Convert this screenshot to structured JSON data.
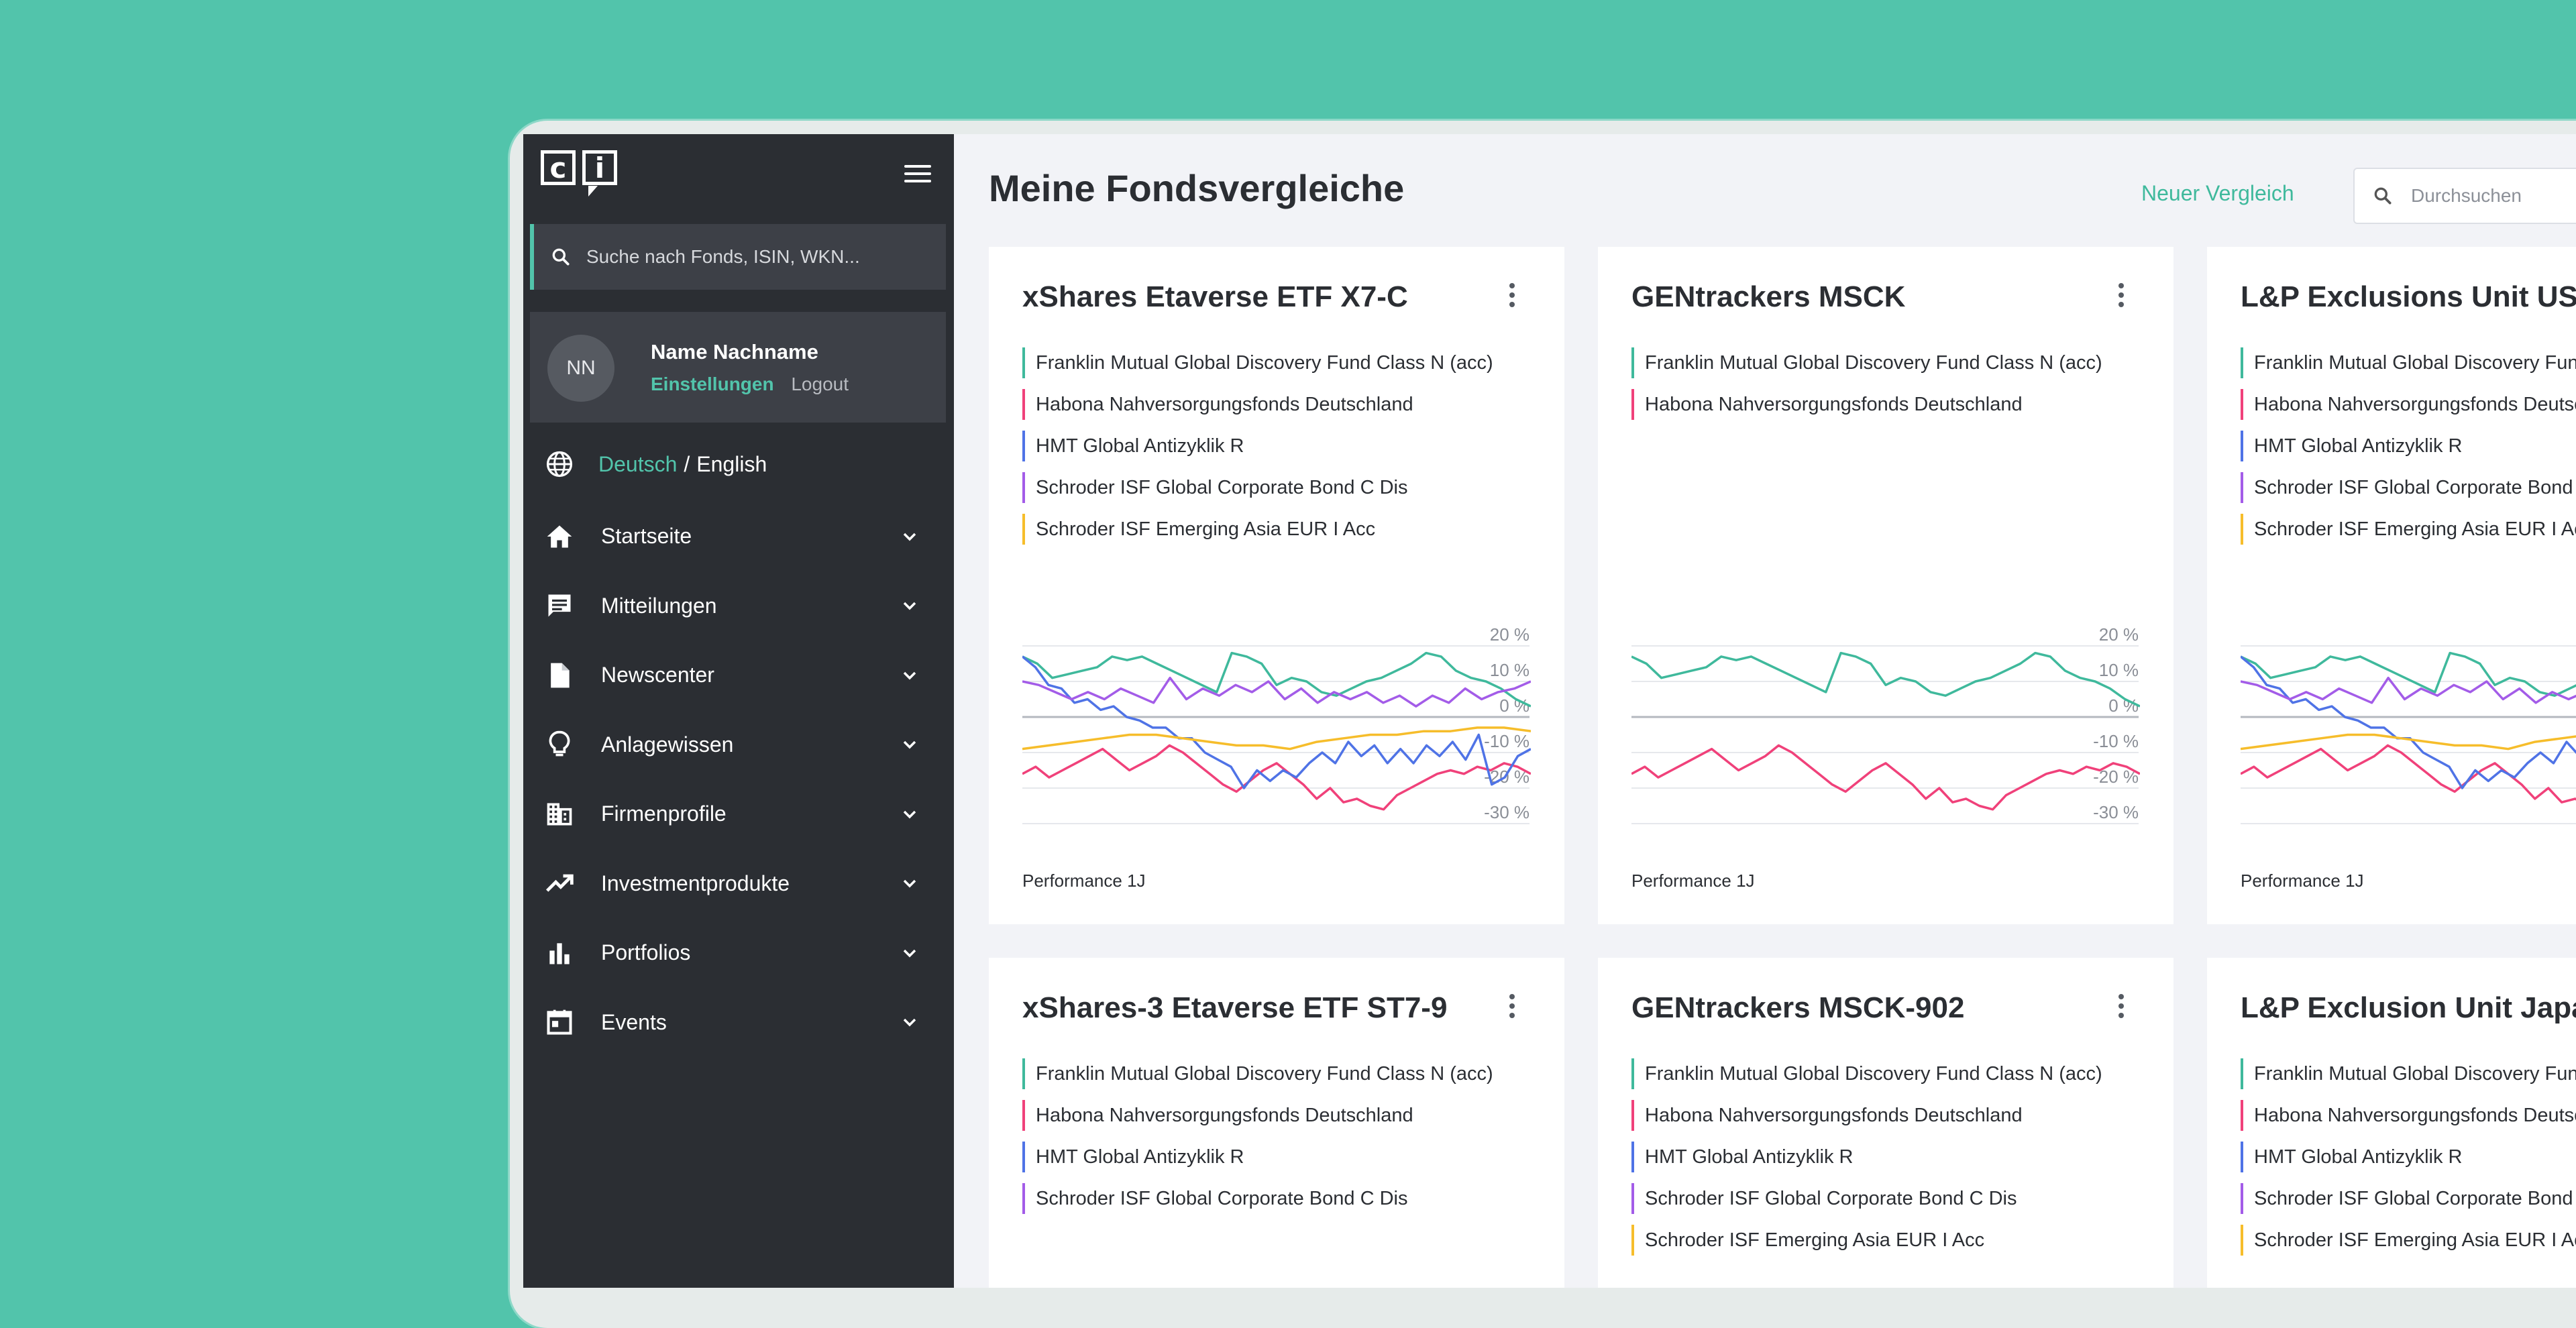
{
  "sidebar": {
    "logo_left": "c",
    "logo_right": "i",
    "search_placeholder": "Suche nach Fonds, ISIN, WKN...",
    "user": {
      "initials": "NN",
      "name": "Name Nachname",
      "settings": "Einstellungen",
      "logout": "Logout"
    },
    "lang": {
      "de": "Deutsch",
      "sep": "/",
      "en": "English"
    },
    "nav": [
      {
        "label": "Startseite",
        "icon": "home-icon"
      },
      {
        "label": "Mitteilungen",
        "icon": "chat-icon"
      },
      {
        "label": "Newscenter",
        "icon": "document-icon"
      },
      {
        "label": "Anlagewissen",
        "icon": "lightbulb-icon"
      },
      {
        "label": "Firmenprofile",
        "icon": "building-icon"
      },
      {
        "label": "Investmentprodukte",
        "icon": "trending-up-icon"
      },
      {
        "label": "Portfolios",
        "icon": "bar-chart-icon"
      },
      {
        "label": "Events",
        "icon": "calendar-icon"
      }
    ]
  },
  "header": {
    "title": "Meine Fondsvergleiche",
    "new_comparison": "Neuer Vergleich",
    "search_placeholder": "Durchsuchen"
  },
  "colors": {
    "accent": "#52c4ab",
    "teal": "#3fb99c",
    "pink": "#f0417a",
    "blue": "#4f73e6",
    "purple": "#a35ce8",
    "yellow": "#f6bd2b"
  },
  "funds": {
    "franklin": "Franklin Mutual Global Discovery Fund Class N (acc)",
    "habona": "Habona Nahversorgungsfonds Deutschland",
    "hmt": "HMT Global Antizyklik R",
    "schroder_bond": "Schroder ISF Global Corporate Bond C Dis",
    "schroder_asia": "Schroder ISF Emerging Asia EUR I Acc"
  },
  "cards": [
    {
      "title": "xShares Etaverse ETF X7-C",
      "funds": [
        "franklin",
        "habona",
        "hmt",
        "schroder_bond",
        "schroder_asia"
      ],
      "perf": "Performance 1J"
    },
    {
      "title": "GENtrackers MSCK",
      "funds": [
        "franklin",
        "habona"
      ],
      "perf": "Performance 1J"
    },
    {
      "title": "L&P Exclusions Unit USA",
      "funds": [
        "franklin",
        "habona",
        "hmt",
        "schroder_bond",
        "schroder_asia"
      ],
      "perf": "Performance 1J"
    },
    {
      "title": "xShares-3 Etaverse ETF ST7-9",
      "funds": [
        "franklin",
        "habona",
        "hmt",
        "schroder_bond"
      ]
    },
    {
      "title": "GENtrackers MSCK-902",
      "funds": [
        "franklin",
        "habona",
        "hmt",
        "schroder_bond",
        "schroder_asia"
      ]
    },
    {
      "title": "L&P Exclusion Unit Japan",
      "funds": [
        "franklin",
        "habona",
        "hmt",
        "schroder_bond",
        "schroder_asia"
      ]
    }
  ],
  "chart_data": {
    "type": "line",
    "title": "Performance 1J",
    "ylim": [
      -30,
      20
    ],
    "ytick_labels": [
      "20 %",
      "10 %",
      "0 %",
      "-10 %",
      "-20 %",
      "-30 %"
    ],
    "yticks": [
      20,
      10,
      0,
      -10,
      -20,
      -30
    ],
    "series": [
      {
        "name": "Franklin Mutual Global Discovery Fund Class N (acc)",
        "color": "teal",
        "values": [
          17,
          15,
          11,
          12,
          13,
          14,
          17,
          16,
          17,
          15,
          13,
          11,
          9,
          7,
          18,
          17,
          15,
          9,
          11,
          10,
          7,
          6,
          8,
          10,
          11,
          13,
          15,
          18,
          17,
          13,
          11,
          10,
          8,
          5,
          3
        ]
      },
      {
        "name": "Habona Nahversorgungsfonds Deutschland",
        "color": "pink",
        "values": [
          -16,
          -14,
          -17,
          -15,
          -13,
          -11,
          -9,
          -12,
          -15,
          -13,
          -11,
          -8,
          -10,
          -13,
          -16,
          -19,
          -21,
          -18,
          -15,
          -13,
          -16,
          -19,
          -23,
          -20,
          -24,
          -23,
          -25,
          -26,
          -22,
          -20,
          -18,
          -16,
          -15,
          -16,
          -14,
          -15,
          -13,
          -14,
          -16
        ]
      },
      {
        "name": "HMT Global Antizyklik R",
        "color": "blue",
        "values": [
          17,
          14,
          9,
          8,
          4,
          5,
          2,
          3,
          0,
          -1,
          -3,
          -3,
          -6,
          -6,
          -10,
          -12,
          -14,
          -20,
          -15,
          -18,
          -15,
          -17,
          -13,
          -10,
          -13,
          -7,
          -11,
          -8,
          -13,
          -9,
          -13,
          -8,
          -11,
          -7,
          -12,
          -5,
          -19,
          -17,
          -11,
          -9
        ]
      },
      {
        "name": "Schroder ISF Global Corporate Bond C Dis",
        "color": "purple",
        "values": [
          10,
          9,
          7,
          5,
          7,
          5,
          8,
          6,
          4,
          11,
          5,
          8,
          6,
          9,
          7,
          10,
          5,
          8,
          4,
          7,
          5,
          7,
          4,
          6,
          3,
          6,
          4,
          8,
          5,
          7,
          8,
          10
        ]
      },
      {
        "name": "Schroder ISF Emerging Asia EUR I Acc",
        "color": "yellow",
        "values": [
          -9,
          -8,
          -7,
          -6,
          -5,
          -5,
          -6,
          -7,
          -8,
          -8,
          -9,
          -7,
          -6,
          -5,
          -5,
          -4,
          -4,
          -3,
          -3,
          -4
        ]
      }
    ]
  }
}
